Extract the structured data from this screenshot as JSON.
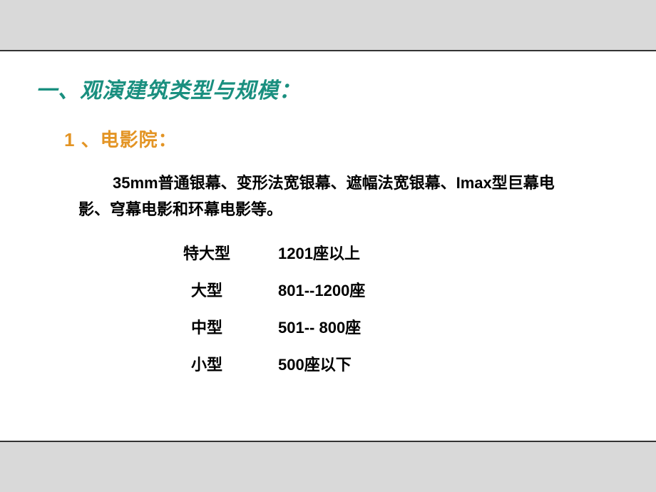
{
  "headings": {
    "main": "一、观演建筑类型与规模：",
    "sub": "1 、电影院："
  },
  "paragraph": "35mm普通银幕、变形法宽银幕、遮幅法宽银幕、Imax型巨幕电影、穹幕电影和环幕电影等。",
  "table": {
    "rows": [
      {
        "label": "特大型",
        "value": "1201座以上"
      },
      {
        "label": "大型",
        "value": "801--1200座"
      },
      {
        "label": "中型",
        "value": "501--  800座"
      },
      {
        "label": "小型",
        "value": "500座以下"
      }
    ]
  },
  "colors": {
    "main_heading": "#1a8f7f",
    "sub_heading": "#e39424",
    "text": "#000000",
    "bar_bg": "#d9d9d9",
    "bar_border": "#333333",
    "page_bg": "#ffffff"
  },
  "typography": {
    "main_heading_fontsize": 30,
    "sub_heading_fontsize": 26,
    "body_fontsize": 22,
    "font_family": "Microsoft YaHei / SimHei"
  }
}
